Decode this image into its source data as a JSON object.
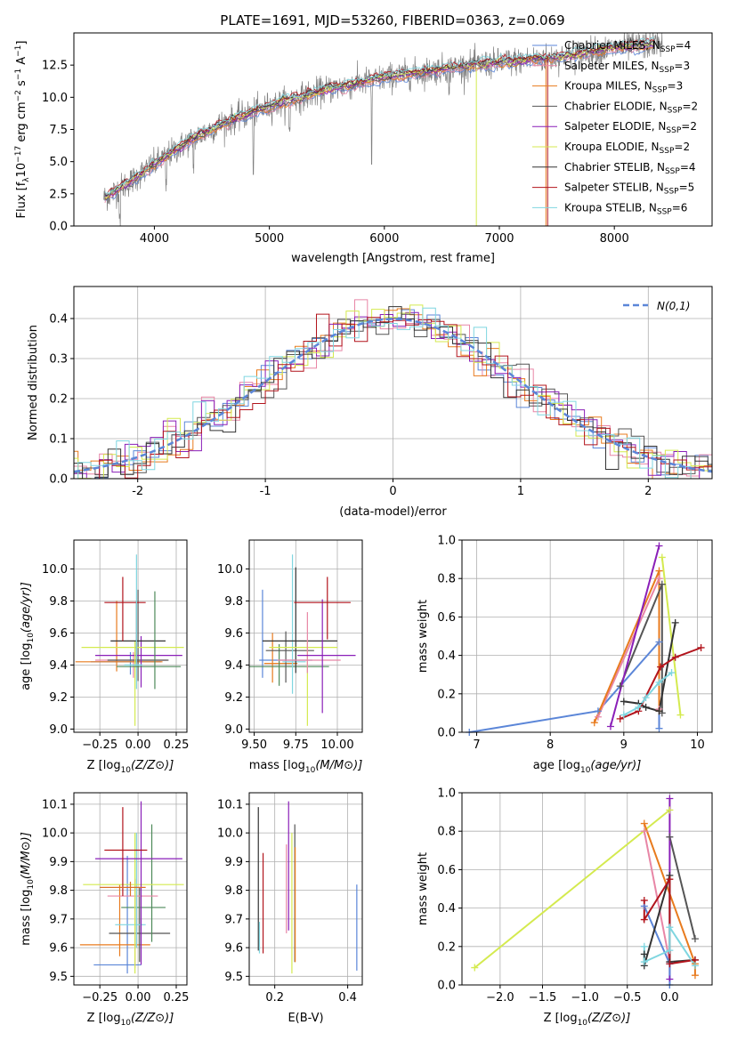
{
  "colors": {
    "Chabrier MILES": "#5b86d8",
    "Salpeter MILES": "#e886a6",
    "Kroupa MILES": "#e87b1e",
    "Chabrier ELODIE": "#555555",
    "Salpeter ELODIE": "#8a1fb8",
    "Kroupa ELODIE": "#d4ea4f",
    "Chabrier STELIB": "#333333",
    "Salpeter STELIB": "#b2141c",
    "Kroupa STELIB": "#7fd6e0",
    "extra_green": "#4e8a5a",
    "extra_orange": "#d9712a",
    "gauss": "#5b86d8"
  },
  "chart_data": [
    {
      "id": "spectrum",
      "type": "line",
      "title": "PLATE=1691, MJD=53260, FIBERID=0363, z=0.069",
      "xlabel": "wavelength [Angstrom, rest frame]",
      "ylabel": "Flux [f_λ 10^-17 erg cm^-2 s^-1 A^-1]",
      "xlim": [
        3300,
        8850
      ],
      "ylim": [
        0,
        15
      ],
      "xticks": [
        4000,
        5000,
        6000,
        7000,
        8000
      ],
      "yticks": [
        0.0,
        2.5,
        5.0,
        7.5,
        10.0,
        12.5
      ],
      "grid": false,
      "legend_position": "right",
      "legend": [
        {
          "name": "Chabrier MILES",
          "nssp": "4"
        },
        {
          "name": "Salpeter MILES",
          "nssp": "3"
        },
        {
          "name": "Kroupa MILES",
          "nssp": "3"
        },
        {
          "name": "Chabrier ELODIE",
          "nssp": "2"
        },
        {
          "name": "Salpeter ELODIE",
          "nssp": "2"
        },
        {
          "name": "Kroupa ELODIE",
          "nssp": "2"
        },
        {
          "name": "Chabrier STELIB",
          "nssp": "4"
        },
        {
          "name": "Salpeter STELIB",
          "nssp": "5"
        },
        {
          "name": "Kroupa STELIB",
          "nssp": "6"
        }
      ],
      "data_trend": {
        "x": [
          3570,
          3800,
          4000,
          4300,
          4600,
          5000,
          5500,
          6000,
          6500,
          7000,
          7500,
          8000,
          8400
        ],
        "y": [
          2.2,
          3.5,
          4.8,
          6.6,
          8.0,
          9.3,
          10.6,
          11.5,
          12.2,
          12.7,
          13.1,
          13.8,
          14.2
        ]
      }
    },
    {
      "id": "residuals",
      "type": "step",
      "xlabel": "(data-model)/error",
      "ylabel": "Normed distribution",
      "xlim": [
        -2.5,
        2.5
      ],
      "ylim": [
        0,
        0.48
      ],
      "xticks": [
        -2,
        -1,
        0,
        1,
        2
      ],
      "yticks": [
        0.0,
        0.1,
        0.2,
        0.3,
        0.4
      ],
      "grid": true,
      "legend_position": "top-right",
      "gauss_label": "N(0,1)",
      "bin_width": 0.1
    },
    {
      "id": "age_vs_Z",
      "type": "errorbar",
      "xlabel": "Z [log10(Z/Z⊙)]",
      "ylabel": "age [log10(age/yr)]",
      "xlim": [
        -0.42,
        0.32
      ],
      "ylim": [
        8.98,
        10.18
      ],
      "xticks": [
        -0.25,
        0.0,
        0.25
      ],
      "xtick_labels": [
        "−0.25",
        "0.00",
        "0.25"
      ],
      "yticks": [
        9.0,
        9.2,
        9.4,
        9.6,
        9.8,
        10.0
      ],
      "grid": true,
      "points": [
        {
          "series": "Chabrier MILES",
          "x": -0.05,
          "xerr": [
            0.26,
            0.2
          ],
          "y": 9.42,
          "yerr": [
            0.08,
            0.06
          ]
        },
        {
          "series": "Salpeter MILES",
          "x": -0.03,
          "xerr": [
            0.25,
            0.22
          ],
          "y": 9.43,
          "yerr": [
            0.11,
            0.05
          ]
        },
        {
          "series": "Kroupa MILES",
          "x": -0.14,
          "xerr": [
            0.27,
            0.3
          ],
          "y": 9.42,
          "yerr": [
            0.06,
            0.38
          ]
        },
        {
          "series": "Chabrier ELODIE",
          "x": 0.0,
          "xerr": [
            0.2,
            0.2
          ],
          "y": 9.43,
          "yerr": [
            0.13,
            0.44
          ]
        },
        {
          "series": "Salpeter ELODIE",
          "x": 0.02,
          "xerr": [
            0.3,
            0.27
          ],
          "y": 9.46,
          "yerr": [
            0.2,
            0.12
          ]
        },
        {
          "series": "Kroupa ELODIE",
          "x": -0.02,
          "xerr": [
            0.35,
            0.32
          ],
          "y": 9.51,
          "yerr": [
            0.49,
            0.04
          ]
        },
        {
          "series": "Chabrier STELIB",
          "x": -0.01,
          "xerr": [
            0.17,
            0.19
          ],
          "y": 9.55,
          "yerr": [
            0.16,
            0.25
          ]
        },
        {
          "series": "Salpeter STELIB",
          "x": -0.1,
          "xerr": [
            0.12,
            0.15
          ],
          "y": 9.79,
          "yerr": [
            0.24,
            0.16
          ]
        },
        {
          "series": "Kroupa STELIB",
          "x": -0.01,
          "xerr": [
            0.08,
            0.04
          ],
          "y": 9.4,
          "yerr": [
            0.15,
            0.69
          ]
        },
        {
          "series": "extra_green",
          "x": 0.11,
          "xerr": [
            0.25,
            0.17
          ],
          "y": 9.39,
          "yerr": [
            0.14,
            0.47
          ]
        }
      ]
    },
    {
      "id": "age_vs_mass",
      "type": "errorbar",
      "xlabel": "mass [log10(M/M⊙)]",
      "ylabel": "",
      "xlim": [
        9.47,
        10.15
      ],
      "ylim": [
        8.98,
        10.18
      ],
      "xticks": [
        9.5,
        9.75,
        10.0
      ],
      "xtick_labels": [
        "9.50",
        "9.75",
        "10.00"
      ],
      "yticks": [
        9.0,
        9.2,
        9.4,
        9.6,
        9.8,
        10.0
      ],
      "grid": true,
      "points": [
        {
          "series": "Chabrier MILES",
          "x": 9.55,
          "xerr": [
            0.02,
            0.3
          ],
          "y": 9.43,
          "yerr": [
            0.11,
            0.44
          ]
        },
        {
          "series": "Kroupa MILES",
          "x": 9.61,
          "xerr": [
            0.05,
            0.15
          ],
          "y": 9.41,
          "yerr": [
            0.12,
            0.19
          ]
        },
        {
          "series": "extra_green",
          "x": 9.65,
          "xerr": [
            0.2,
            0.3
          ],
          "y": 9.39,
          "yerr": [
            0.12,
            0.14
          ]
        },
        {
          "series": "Chabrier ELODIE",
          "x": 9.69,
          "xerr": [
            0.12,
            0.17
          ],
          "y": 9.49,
          "yerr": [
            0.2,
            0.12
          ]
        },
        {
          "series": "Kroupa STELIB",
          "x": 9.73,
          "xerr": [
            0.06,
            0.08
          ],
          "y": 9.42,
          "yerr": [
            0.2,
            0.67
          ]
        },
        {
          "series": "Chabrier STELIB",
          "x": 9.75,
          "xerr": [
            0.2,
            0.25
          ],
          "y": 9.55,
          "yerr": [
            0.2,
            0.46
          ]
        },
        {
          "series": "Kroupa ELODIE",
          "x": 9.82,
          "xerr": [
            0.23,
            0.18
          ],
          "y": 9.51,
          "yerr": [
            0.49,
            0.04
          ]
        },
        {
          "series": "Salpeter MILES",
          "x": 9.82,
          "xerr": [
            0.18,
            0.2
          ],
          "y": 9.43,
          "yerr": [
            0.08,
            0.3
          ]
        },
        {
          "series": "Salpeter ELODIE",
          "x": 9.91,
          "xerr": [
            0.15,
            0.2
          ],
          "y": 9.46,
          "yerr": [
            0.36,
            0.35
          ]
        },
        {
          "series": "Salpeter STELIB",
          "x": 9.94,
          "xerr": [
            0.2,
            0.14
          ],
          "y": 9.79,
          "yerr": [
            0.23,
            0.16
          ]
        }
      ]
    },
    {
      "id": "massweight_vs_age",
      "type": "line",
      "xlabel": "age [log10(age/yr)]",
      "ylabel": "mass weight",
      "xlim": [
        6.8,
        10.2
      ],
      "ylim": [
        0,
        1.0
      ],
      "xticks": [
        7,
        8,
        9,
        10
      ],
      "yticks": [
        0.0,
        0.2,
        0.4,
        0.6,
        0.8,
        1.0
      ],
      "grid": true,
      "series": [
        {
          "name": "Chabrier MILES",
          "x": [
            6.9,
            8.65,
            9.48,
            9.48
          ],
          "y": [
            0.0,
            0.11,
            0.47,
            0.02
          ]
        },
        {
          "name": "Salpeter MILES",
          "x": [
            8.65,
            9.48,
            9.48
          ],
          "y": [
            0.08,
            0.8,
            0.12
          ]
        },
        {
          "name": "Kroupa MILES",
          "x": [
            8.6,
            9.48,
            9.48
          ],
          "y": [
            0.05,
            0.84,
            0.11
          ]
        },
        {
          "name": "Chabrier ELODIE",
          "x": [
            8.95,
            9.52,
            9.52
          ],
          "y": [
            0.24,
            0.77,
            0.1
          ]
        },
        {
          "name": "Salpeter ELODIE",
          "x": [
            8.82,
            9.48
          ],
          "y": [
            0.03,
            0.97
          ]
        },
        {
          "name": "Kroupa ELODIE",
          "x": [
            9.52,
            9.77
          ],
          "y": [
            0.91,
            0.09
          ]
        },
        {
          "name": "Chabrier STELIB",
          "x": [
            9.0,
            9.2,
            9.3,
            9.48,
            9.7
          ],
          "y": [
            0.16,
            0.15,
            0.13,
            0.11,
            0.57
          ]
        },
        {
          "name": "Salpeter STELIB",
          "x": [
            8.95,
            9.2,
            9.5,
            9.7,
            10.05
          ],
          "y": [
            0.07,
            0.11,
            0.34,
            0.39,
            0.44
          ]
        },
        {
          "name": "Kroupa STELIB",
          "x": [
            9.0,
            9.2,
            9.3,
            9.48,
            9.65
          ],
          "y": [
            0.09,
            0.13,
            0.18,
            0.26,
            0.31
          ]
        }
      ]
    },
    {
      "id": "mass_vs_Z",
      "type": "errorbar",
      "xlabel": "Z [log10(Z/Z⊙)]",
      "ylabel": "mass [log10(M/M⊙)]",
      "xlim": [
        -0.42,
        0.32
      ],
      "ylim": [
        9.47,
        10.14
      ],
      "xticks": [
        -0.25,
        0.0,
        0.25
      ],
      "xtick_labels": [
        "−0.25",
        "0.00",
        "0.25"
      ],
      "yticks": [
        9.5,
        9.6,
        9.7,
        9.8,
        9.9,
        10.0,
        10.1
      ],
      "grid": true,
      "points": [
        {
          "series": "Chabrier MILES",
          "x": -0.07,
          "xerr": [
            0.22,
            0.09
          ],
          "y": 9.54,
          "yerr": [
            0.03,
            0.38
          ]
        },
        {
          "series": "Kroupa MILES",
          "x": -0.12,
          "xerr": [
            0.26,
            0.2
          ],
          "y": 9.61,
          "yerr": [
            0.04,
            0.21
          ]
        },
        {
          "series": "Chabrier ELODIE",
          "x": 0.01,
          "xerr": [
            0.2,
            0.2
          ],
          "y": 9.65,
          "yerr": [
            0.1,
            0.16
          ]
        },
        {
          "series": "extra_green",
          "x": 0.09,
          "xerr": [
            0.2,
            0.09
          ],
          "y": 9.74,
          "yerr": [
            0.12,
            0.29
          ]
        },
        {
          "series": "Salpeter MILES",
          "x": -0.02,
          "xerr": [
            0.18,
            0.15
          ],
          "y": 9.78,
          "yerr": [
            0.25,
            0.06
          ]
        },
        {
          "series": "Kroupa STELIB",
          "x": -0.01,
          "xerr": [
            0.14,
            0.06
          ],
          "y": 9.68,
          "yerr": [
            0.08,
            0.32
          ]
        },
        {
          "series": "Kroupa ELODIE",
          "x": -0.02,
          "xerr": [
            0.34,
            0.32
          ],
          "y": 9.82,
          "yerr": [
            0.31,
            0.18
          ]
        },
        {
          "series": "Salpeter ELODIE",
          "x": 0.02,
          "xerr": [
            0.3,
            0.27
          ],
          "y": 9.91,
          "yerr": [
            0.37,
            0.2
          ]
        },
        {
          "series": "Salpeter STELIB",
          "x": -0.1,
          "xerr": [
            0.12,
            0.16
          ],
          "y": 9.94,
          "yerr": [
            0.16,
            0.15
          ]
        },
        {
          "series": "extra_orange",
          "x": -0.05,
          "xerr": [
            0.2,
            0.1
          ],
          "y": 9.81,
          "yerr": [
            0.03,
            0.02
          ]
        }
      ]
    },
    {
      "id": "mass_vs_ebv",
      "type": "errorbar",
      "xlabel": "E(B-V)",
      "ylabel": "",
      "xlim": [
        0.13,
        0.44
      ],
      "ylim": [
        9.47,
        10.14
      ],
      "xticks": [
        0.2,
        0.4
      ],
      "xtick_labels": [
        "0.2",
        "0.4"
      ],
      "yticks": [
        9.5,
        9.6,
        9.7,
        9.8,
        9.9,
        10.0,
        10.1
      ],
      "grid": true,
      "points": [
        {
          "series": "Chabrier STELIB",
          "x": 0.155,
          "y": 9.79,
          "yerr": [
            0.2,
            0.3
          ]
        },
        {
          "series": "Kroupa STELIB",
          "x": 0.158,
          "y": 9.62,
          "yerr": [
            0.04,
            0.07
          ]
        },
        {
          "series": "Salpeter STELIB",
          "x": 0.168,
          "y": 9.78,
          "yerr": [
            0.2,
            0.15
          ]
        },
        {
          "series": "Salpeter MILES",
          "x": 0.232,
          "y": 9.85,
          "yerr": [
            0.2,
            0.11
          ]
        },
        {
          "series": "Salpeter ELODIE",
          "x": 0.238,
          "y": 9.91,
          "yerr": [
            0.25,
            0.2
          ]
        },
        {
          "series": "Kroupa ELODIE",
          "x": 0.247,
          "y": 9.75,
          "yerr": [
            0.24,
            0.25
          ]
        },
        {
          "series": "Chabrier ELODIE",
          "x": 0.255,
          "y": 9.78,
          "yerr": [
            0.23,
            0.25
          ]
        },
        {
          "series": "Kroupa MILES",
          "x": 0.256,
          "y": 9.74,
          "yerr": [
            0.19,
            0.21
          ]
        },
        {
          "series": "Chabrier MILES",
          "x": 0.425,
          "y": 9.67,
          "yerr": [
            0.15,
            0.15
          ]
        }
      ]
    },
    {
      "id": "massweight_vs_Z",
      "type": "line",
      "xlabel": "Z [log10(Z/Z⊙)]",
      "ylabel": "mass weight",
      "xlim": [
        -2.45,
        0.5
      ],
      "ylim": [
        0,
        1.0
      ],
      "xticks": [
        -2.0,
        -1.5,
        -1.0,
        -0.5,
        0.0
      ],
      "xtick_labels": [
        "−2.0",
        "−1.5",
        "−1.0",
        "−0.5",
        "0.0"
      ],
      "yticks": [
        0.0,
        0.2,
        0.4,
        0.6,
        0.8,
        1.0
      ],
      "grid": true,
      "series": [
        {
          "name": "Kroupa ELODIE",
          "x": [
            -2.3,
            0.0
          ],
          "y": [
            0.09,
            0.91
          ]
        },
        {
          "name": "Salpeter MILES",
          "x": [
            -0.3,
            0.0
          ],
          "y": [
            0.8,
            0.12
          ]
        },
        {
          "name": "Kroupa MILES",
          "x": [
            -0.3,
            0.3,
            0.3
          ],
          "y": [
            0.84,
            0.11,
            0.05
          ]
        },
        {
          "name": "Chabrier ELODIE",
          "x": [
            0.0,
            0.3
          ],
          "y": [
            0.77,
            0.24
          ]
        },
        {
          "name": "Salpeter ELODIE",
          "x": [
            0.0,
            0.0
          ],
          "y": [
            0.97,
            0.03
          ]
        },
        {
          "name": "Chabrier MILES",
          "x": [
            -0.3,
            0.0,
            0.0
          ],
          "y": [
            0.41,
            0.11,
            0.0
          ]
        },
        {
          "name": "Chabrier STELIB",
          "x": [
            -0.3,
            -0.3,
            0.0,
            0.0,
            0.3
          ],
          "y": [
            0.16,
            0.1,
            0.57,
            0.12,
            0.13
          ]
        },
        {
          "name": "Salpeter STELIB",
          "x": [
            -0.3,
            -0.3,
            0.0,
            0.0,
            0.3
          ],
          "y": [
            0.44,
            0.34,
            0.55,
            0.11,
            0.13
          ]
        },
        {
          "name": "Kroupa STELIB",
          "x": [
            -0.3,
            -0.3,
            0.0,
            0.0,
            0.3
          ],
          "y": [
            0.2,
            0.12,
            0.18,
            0.3,
            0.1
          ]
        }
      ]
    }
  ]
}
